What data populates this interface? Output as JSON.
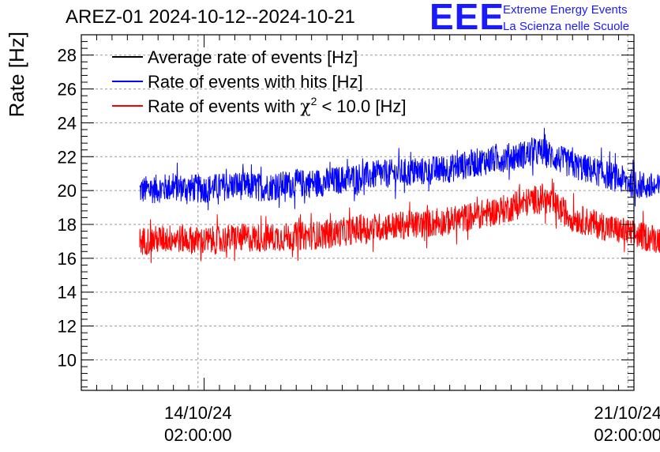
{
  "header": {
    "title": "AREZ-01 2024-10-12--2024-10-21",
    "logo_text": "EEE",
    "logo_line1": "Extreme Energy Events",
    "logo_line2": "La Scienza nelle Scuole"
  },
  "colors": {
    "average": "#000000",
    "hits": "#0000ff",
    "chi2": "#ff0000",
    "logo": "#1a1aff",
    "grid": "#9a9a9a"
  },
  "chart_data": {
    "type": "line",
    "ylabel": "Rate [Hz]",
    "xlabel": "",
    "ylim": [
      8.2,
      29.2
    ],
    "yticks": [
      10,
      12,
      14,
      16,
      18,
      20,
      22,
      24,
      26,
      28
    ],
    "xlim_days": [
      0,
      9
    ],
    "xticks": [
      {
        "day": 1.9,
        "line1": "14/10/24",
        "line2": "02:00:00"
      },
      {
        "day": 8.9,
        "line1": "21/10/24",
        "line2": "02:00:00"
      }
    ],
    "grid": true,
    "legend_position": "top-left",
    "legend": [
      {
        "label": "Average rate of events [Hz]",
        "series": "average"
      },
      {
        "label": "Rate of events with hits [Hz]",
        "series": "hits"
      },
      {
        "label_prefix": "Rate of events with ",
        "label_chi": "χ",
        "label_sup": "2",
        "label_suffix": " < 10.0 [Hz]",
        "series": "chi2"
      }
    ],
    "series": [
      {
        "name": "Rate of events with hits [Hz]",
        "key": "hits",
        "x_days": [
          0.95,
          1.5,
          2.0,
          2.5,
          3.0,
          3.5,
          4.0,
          4.5,
          5.0,
          5.5,
          6.0,
          6.5,
          7.0,
          7.5,
          8.0,
          8.5,
          9.0,
          9.45
        ],
        "mean": [
          20.0,
          20.2,
          20.1,
          20.3,
          20.2,
          20.4,
          20.5,
          20.8,
          21.0,
          21.1,
          21.3,
          21.7,
          22.0,
          22.3,
          21.5,
          21.0,
          20.4,
          20.1
        ],
        "spread": 0.85
      },
      {
        "name": "Rate of events with χ2 < 10.0 [Hz]",
        "key": "chi2",
        "x_days": [
          0.95,
          1.5,
          2.0,
          2.5,
          3.0,
          3.5,
          4.0,
          4.5,
          5.0,
          5.5,
          6.0,
          6.5,
          7.0,
          7.5,
          8.0,
          8.5,
          9.0,
          9.45
        ],
        "mean": [
          17.0,
          17.2,
          17.0,
          17.2,
          17.2,
          17.3,
          17.4,
          17.7,
          17.9,
          18.0,
          18.2,
          18.6,
          19.0,
          19.6,
          18.4,
          17.9,
          17.4,
          17.1
        ],
        "spread": 0.85
      }
    ]
  }
}
